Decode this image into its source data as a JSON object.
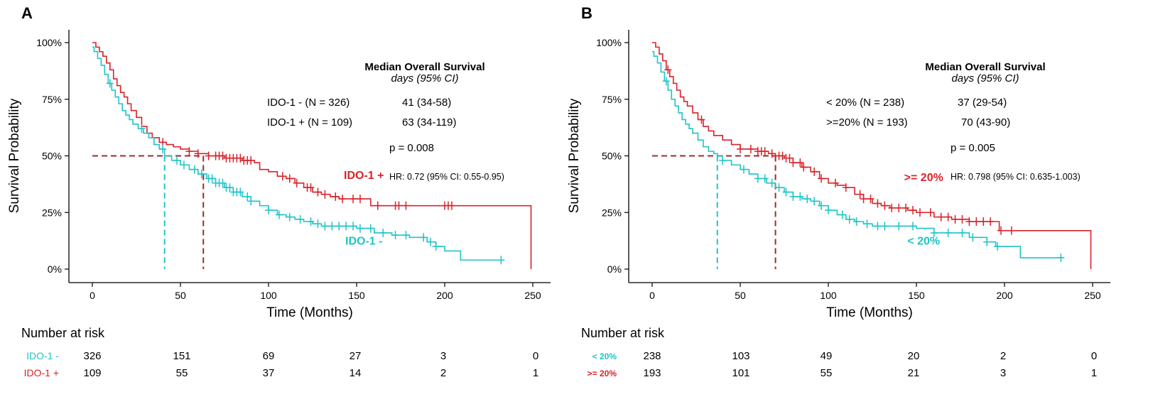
{
  "colors": {
    "cyan": "#1fc4c8",
    "red": "#d8232a",
    "axis": "#000000",
    "median_cyan": "#1fc4c8",
    "median_red": "#9c2b2b"
  },
  "chart_data": [
    {
      "type": "line",
      "panel_label": "A",
      "xlabel": "Time (Months)",
      "ylabel": "Survival Probability",
      "xlim": [
        0,
        250
      ],
      "ylim": [
        0,
        1
      ],
      "x_ticks": [
        "0",
        "50",
        "100",
        "150",
        "200",
        "250"
      ],
      "y_ticks": [
        "0%",
        "25%",
        "50%",
        "75%",
        "100%"
      ],
      "median": {
        "y": 0.5,
        "x_values": [
          41,
          63
        ]
      },
      "legend_title": "Median Overall Survival",
      "legend_subtitle": "days (95% CI)",
      "legend_rows": [
        {
          "group": "IDO-1 - (N = 326)",
          "value": "41 (34-58)"
        },
        {
          "group": "IDO-1 + (N = 109)",
          "value": "63 (34-119)"
        }
      ],
      "p_value": "p = 0.008",
      "hr": "HR: 0.72 (95% CI: 0.55-0.95)",
      "series": [
        {
          "name": "IDO-1 +",
          "color": "#d8232a",
          "x": [
            0,
            2,
            4,
            6,
            8,
            10,
            12,
            14,
            16,
            18,
            20,
            22,
            25,
            28,
            31,
            34,
            38,
            42,
            46,
            50,
            55,
            60,
            66,
            75,
            85,
            92,
            95,
            100,
            105,
            110,
            115,
            120,
            125,
            130,
            135,
            140,
            145,
            150,
            158,
            165,
            175,
            185,
            200,
            249
          ],
          "y": [
            1.0,
            0.98,
            0.96,
            0.94,
            0.91,
            0.88,
            0.84,
            0.81,
            0.78,
            0.76,
            0.73,
            0.7,
            0.67,
            0.63,
            0.6,
            0.58,
            0.56,
            0.55,
            0.54,
            0.53,
            0.52,
            0.51,
            0.5,
            0.49,
            0.48,
            0.47,
            0.44,
            0.43,
            0.41,
            0.4,
            0.38,
            0.36,
            0.34,
            0.33,
            0.32,
            0.31,
            0.31,
            0.31,
            0.28,
            0.28,
            0.28,
            0.28,
            0.28,
            0.28
          ],
          "censor_x": [
            40,
            55,
            60,
            66,
            70,
            72,
            74,
            76,
            78,
            80,
            82,
            84,
            86,
            88,
            90,
            108,
            112,
            116,
            122,
            124,
            128,
            132,
            138,
            142,
            148,
            152,
            162,
            172,
            174,
            178,
            200,
            202,
            204
          ]
        },
        {
          "name": "IDO-1 -",
          "color": "#1fc4c8",
          "x": [
            0,
            1,
            3,
            5,
            7,
            9,
            11,
            13,
            15,
            17,
            19,
            21,
            23,
            26,
            29,
            32,
            35,
            38,
            41,
            45,
            50,
            55,
            60,
            65,
            70,
            75,
            80,
            85,
            90,
            95,
            100,
            105,
            110,
            115,
            120,
            125,
            130,
            135,
            140,
            145,
            150,
            160,
            170,
            180,
            190,
            195,
            200,
            205,
            209,
            215,
            225,
            233
          ],
          "y": [
            0.98,
            0.96,
            0.93,
            0.9,
            0.86,
            0.82,
            0.79,
            0.76,
            0.73,
            0.7,
            0.68,
            0.66,
            0.64,
            0.62,
            0.6,
            0.58,
            0.55,
            0.53,
            0.5,
            0.48,
            0.46,
            0.44,
            0.42,
            0.4,
            0.38,
            0.36,
            0.34,
            0.32,
            0.3,
            0.28,
            0.26,
            0.24,
            0.23,
            0.22,
            0.21,
            0.2,
            0.19,
            0.19,
            0.19,
            0.19,
            0.18,
            0.16,
            0.15,
            0.14,
            0.12,
            0.1,
            0.08,
            0.08,
            0.04,
            0.04,
            0.04,
            0.04
          ],
          "censor_x": [
            10,
            28,
            40,
            48,
            52,
            58,
            62,
            66,
            68,
            70,
            72,
            74,
            76,
            78,
            80,
            82,
            84,
            88,
            90,
            100,
            106,
            112,
            118,
            124,
            128,
            132,
            136,
            140,
            144,
            148,
            152,
            158,
            165,
            172,
            178,
            188,
            192,
            195,
            232
          ]
        }
      ],
      "risk_table": {
        "title": "Number at risk",
        "times": [
          "0",
          "50",
          "100",
          "150",
          "200",
          "250"
        ],
        "rows": [
          {
            "label": "IDO-1 -",
            "color": "#1fc4c8",
            "values": [
              "326",
              "151",
              "69",
              "27",
              "3",
              "0"
            ]
          },
          {
            "label": "IDO-1 +",
            "color": "#d8232a",
            "values": [
              "109",
              "55",
              "37",
              "14",
              "2",
              "1"
            ]
          }
        ]
      },
      "curve_labels": [
        {
          "text": "IDO-1 +",
          "color": "#d8232a",
          "x": 138,
          "y": 0.38
        },
        {
          "text": "IDO-1 -",
          "color": "#1fc4c8",
          "x": 138,
          "y": 0.09
        }
      ]
    },
    {
      "type": "line",
      "panel_label": "B",
      "xlabel": "Time (Months)",
      "ylabel": "Survival Probability",
      "xlim": [
        0,
        250
      ],
      "ylim": [
        0,
        1
      ],
      "x_ticks": [
        "0",
        "50",
        "100",
        "150",
        "200",
        "250"
      ],
      "y_ticks": [
        "0%",
        "25%",
        "50%",
        "75%",
        "100%"
      ],
      "median": {
        "y": 0.5,
        "x_values": [
          37,
          70
        ]
      },
      "legend_title": "Median Overall Survival",
      "legend_subtitle": "days (95% CI)",
      "legend_rows": [
        {
          "group": "< 20% (N = 238)",
          "value": "37 (29-54)"
        },
        {
          "group": ">=20% (N = 193)",
          "value": "70 (43-90)"
        }
      ],
      "p_value": "p = 0.005",
      "hr": "HR: 0.798 (95% CI: 0.635-1.003)",
      "series": [
        {
          "name": ">= 20%",
          "color": "#d8232a",
          "x": [
            0,
            2,
            4,
            6,
            8,
            10,
            12,
            14,
            16,
            18,
            20,
            23,
            26,
            29,
            32,
            35,
            40,
            45,
            50,
            55,
            60,
            66,
            70,
            75,
            80,
            85,
            90,
            95,
            100,
            105,
            110,
            115,
            120,
            125,
            130,
            135,
            140,
            145,
            150,
            160,
            170,
            180,
            190,
            195,
            197,
            249
          ],
          "y": [
            1.0,
            0.98,
            0.95,
            0.92,
            0.88,
            0.85,
            0.82,
            0.79,
            0.76,
            0.74,
            0.72,
            0.69,
            0.66,
            0.63,
            0.61,
            0.59,
            0.57,
            0.55,
            0.53,
            0.53,
            0.52,
            0.51,
            0.5,
            0.49,
            0.47,
            0.45,
            0.43,
            0.4,
            0.38,
            0.37,
            0.36,
            0.33,
            0.31,
            0.29,
            0.28,
            0.27,
            0.27,
            0.26,
            0.25,
            0.23,
            0.22,
            0.21,
            0.21,
            0.21,
            0.17,
            0.17
          ],
          "censor_x": [
            9,
            28,
            50,
            56,
            60,
            62,
            64,
            68,
            72,
            74,
            76,
            78,
            80,
            84,
            86,
            92,
            96,
            104,
            110,
            118,
            120,
            124,
            128,
            132,
            136,
            140,
            144,
            148,
            152,
            158,
            164,
            168,
            172,
            176,
            180,
            184,
            188,
            192,
            198,
            204
          ]
        },
        {
          "name": "< 20%",
          "color": "#1fc4c8",
          "x": [
            0,
            1,
            3,
            5,
            7,
            9,
            11,
            13,
            15,
            17,
            19,
            21,
            23,
            26,
            29,
            32,
            35,
            37,
            40,
            45,
            50,
            55,
            60,
            65,
            70,
            75,
            80,
            85,
            90,
            95,
            100,
            105,
            110,
            115,
            120,
            125,
            130,
            135,
            140,
            145,
            150,
            160,
            170,
            180,
            190,
            195,
            200,
            205,
            209,
            215,
            225,
            233
          ],
          "y": [
            0.96,
            0.94,
            0.91,
            0.87,
            0.83,
            0.79,
            0.75,
            0.72,
            0.69,
            0.66,
            0.64,
            0.62,
            0.6,
            0.57,
            0.54,
            0.52,
            0.51,
            0.5,
            0.48,
            0.46,
            0.44,
            0.42,
            0.4,
            0.38,
            0.36,
            0.34,
            0.32,
            0.31,
            0.3,
            0.28,
            0.26,
            0.24,
            0.22,
            0.21,
            0.2,
            0.19,
            0.19,
            0.19,
            0.19,
            0.19,
            0.18,
            0.16,
            0.16,
            0.14,
            0.12,
            0.1,
            0.1,
            0.1,
            0.05,
            0.05,
            0.05,
            0.05
          ]
        },
        {
          "name": "< 20% censor",
          "color": "#1fc4c8",
          "censor_x": [
            8,
            40,
            52,
            60,
            64,
            68,
            72,
            76,
            80,
            84,
            88,
            92,
            96,
            100,
            108,
            112,
            116,
            122,
            128,
            132,
            140,
            148,
            160,
            168,
            176,
            182,
            190,
            196,
            232
          ]
        }
      ],
      "risk_table": {
        "title": "Number at risk",
        "times": [
          "0",
          "50",
          "100",
          "150",
          "200",
          "250"
        ],
        "rows": [
          {
            "label": "< 20%",
            "color": "#1fc4c8",
            "values": [
              "238",
              "103",
              "49",
              "20",
              "2",
              "0"
            ]
          },
          {
            "label": ">= 20%",
            "color": "#d8232a",
            "values": [
              "193",
              "101",
              "55",
              "21",
              "3",
              "1"
            ]
          }
        ]
      },
      "curve_labels": [
        {
          "text": ">= 20%",
          "color": "#d8232a",
          "x": 138,
          "y": 0.37
        },
        {
          "text": "< 20%",
          "color": "#1fc4c8",
          "x": 138,
          "y": 0.09
        }
      ]
    }
  ]
}
